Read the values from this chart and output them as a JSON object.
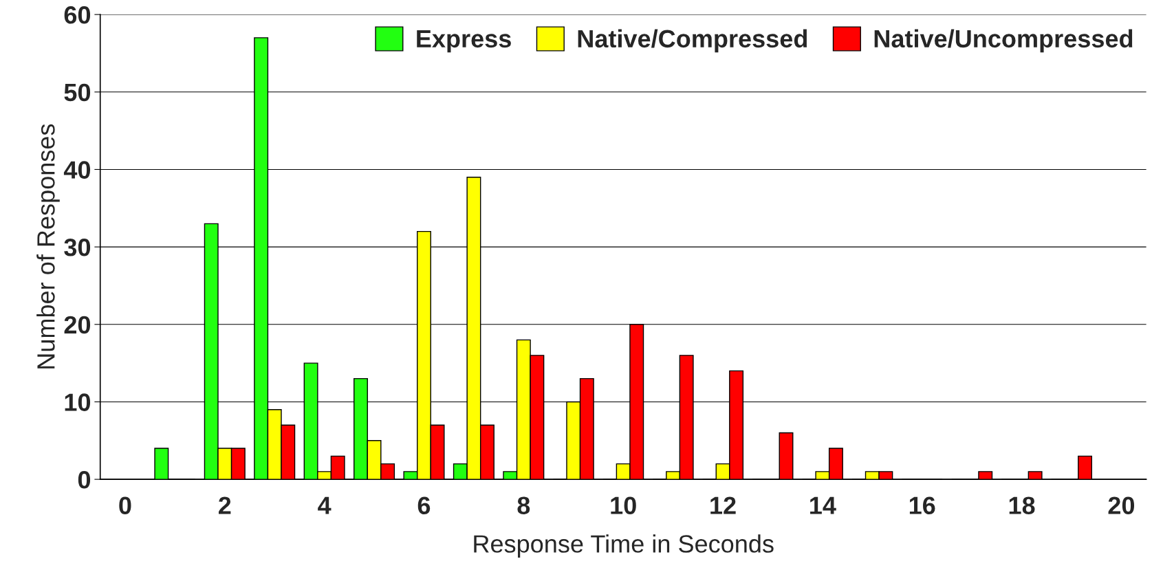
{
  "chart_data": {
    "type": "bar",
    "xlabel": "Response Time in Seconds",
    "ylabel": "Number of Responses",
    "x": [
      1,
      2,
      3,
      4,
      5,
      6,
      7,
      8,
      9,
      10,
      11,
      12,
      13,
      14,
      15,
      16,
      17,
      18,
      19
    ],
    "series": [
      {
        "name": "Express",
        "color": "#22ff11",
        "values": [
          4,
          33,
          57,
          15,
          13,
          1,
          2,
          1,
          0,
          0,
          0,
          0,
          0,
          0,
          0,
          0,
          0,
          0,
          0
        ]
      },
      {
        "name": "Native/Compressed",
        "color": "#ffff00",
        "values": [
          0,
          4,
          9,
          1,
          5,
          32,
          39,
          18,
          10,
          2,
          1,
          2,
          0,
          1,
          1,
          0,
          0,
          0,
          0
        ]
      },
      {
        "name": "Native/Uncompressed",
        "color": "#ff0000",
        "values": [
          0,
          4,
          7,
          3,
          2,
          7,
          7,
          16,
          13,
          20,
          16,
          14,
          6,
          4,
          1,
          0,
          1,
          1,
          3
        ]
      }
    ],
    "xlim": [
      -0.5,
      20.5
    ],
    "xticks": [
      0,
      2,
      4,
      6,
      8,
      10,
      12,
      14,
      16,
      18,
      20
    ],
    "ylim": [
      0,
      60
    ],
    "yticks": [
      0,
      10,
      20,
      30,
      40,
      50,
      60
    ],
    "grid": "y",
    "legend": "top right"
  }
}
